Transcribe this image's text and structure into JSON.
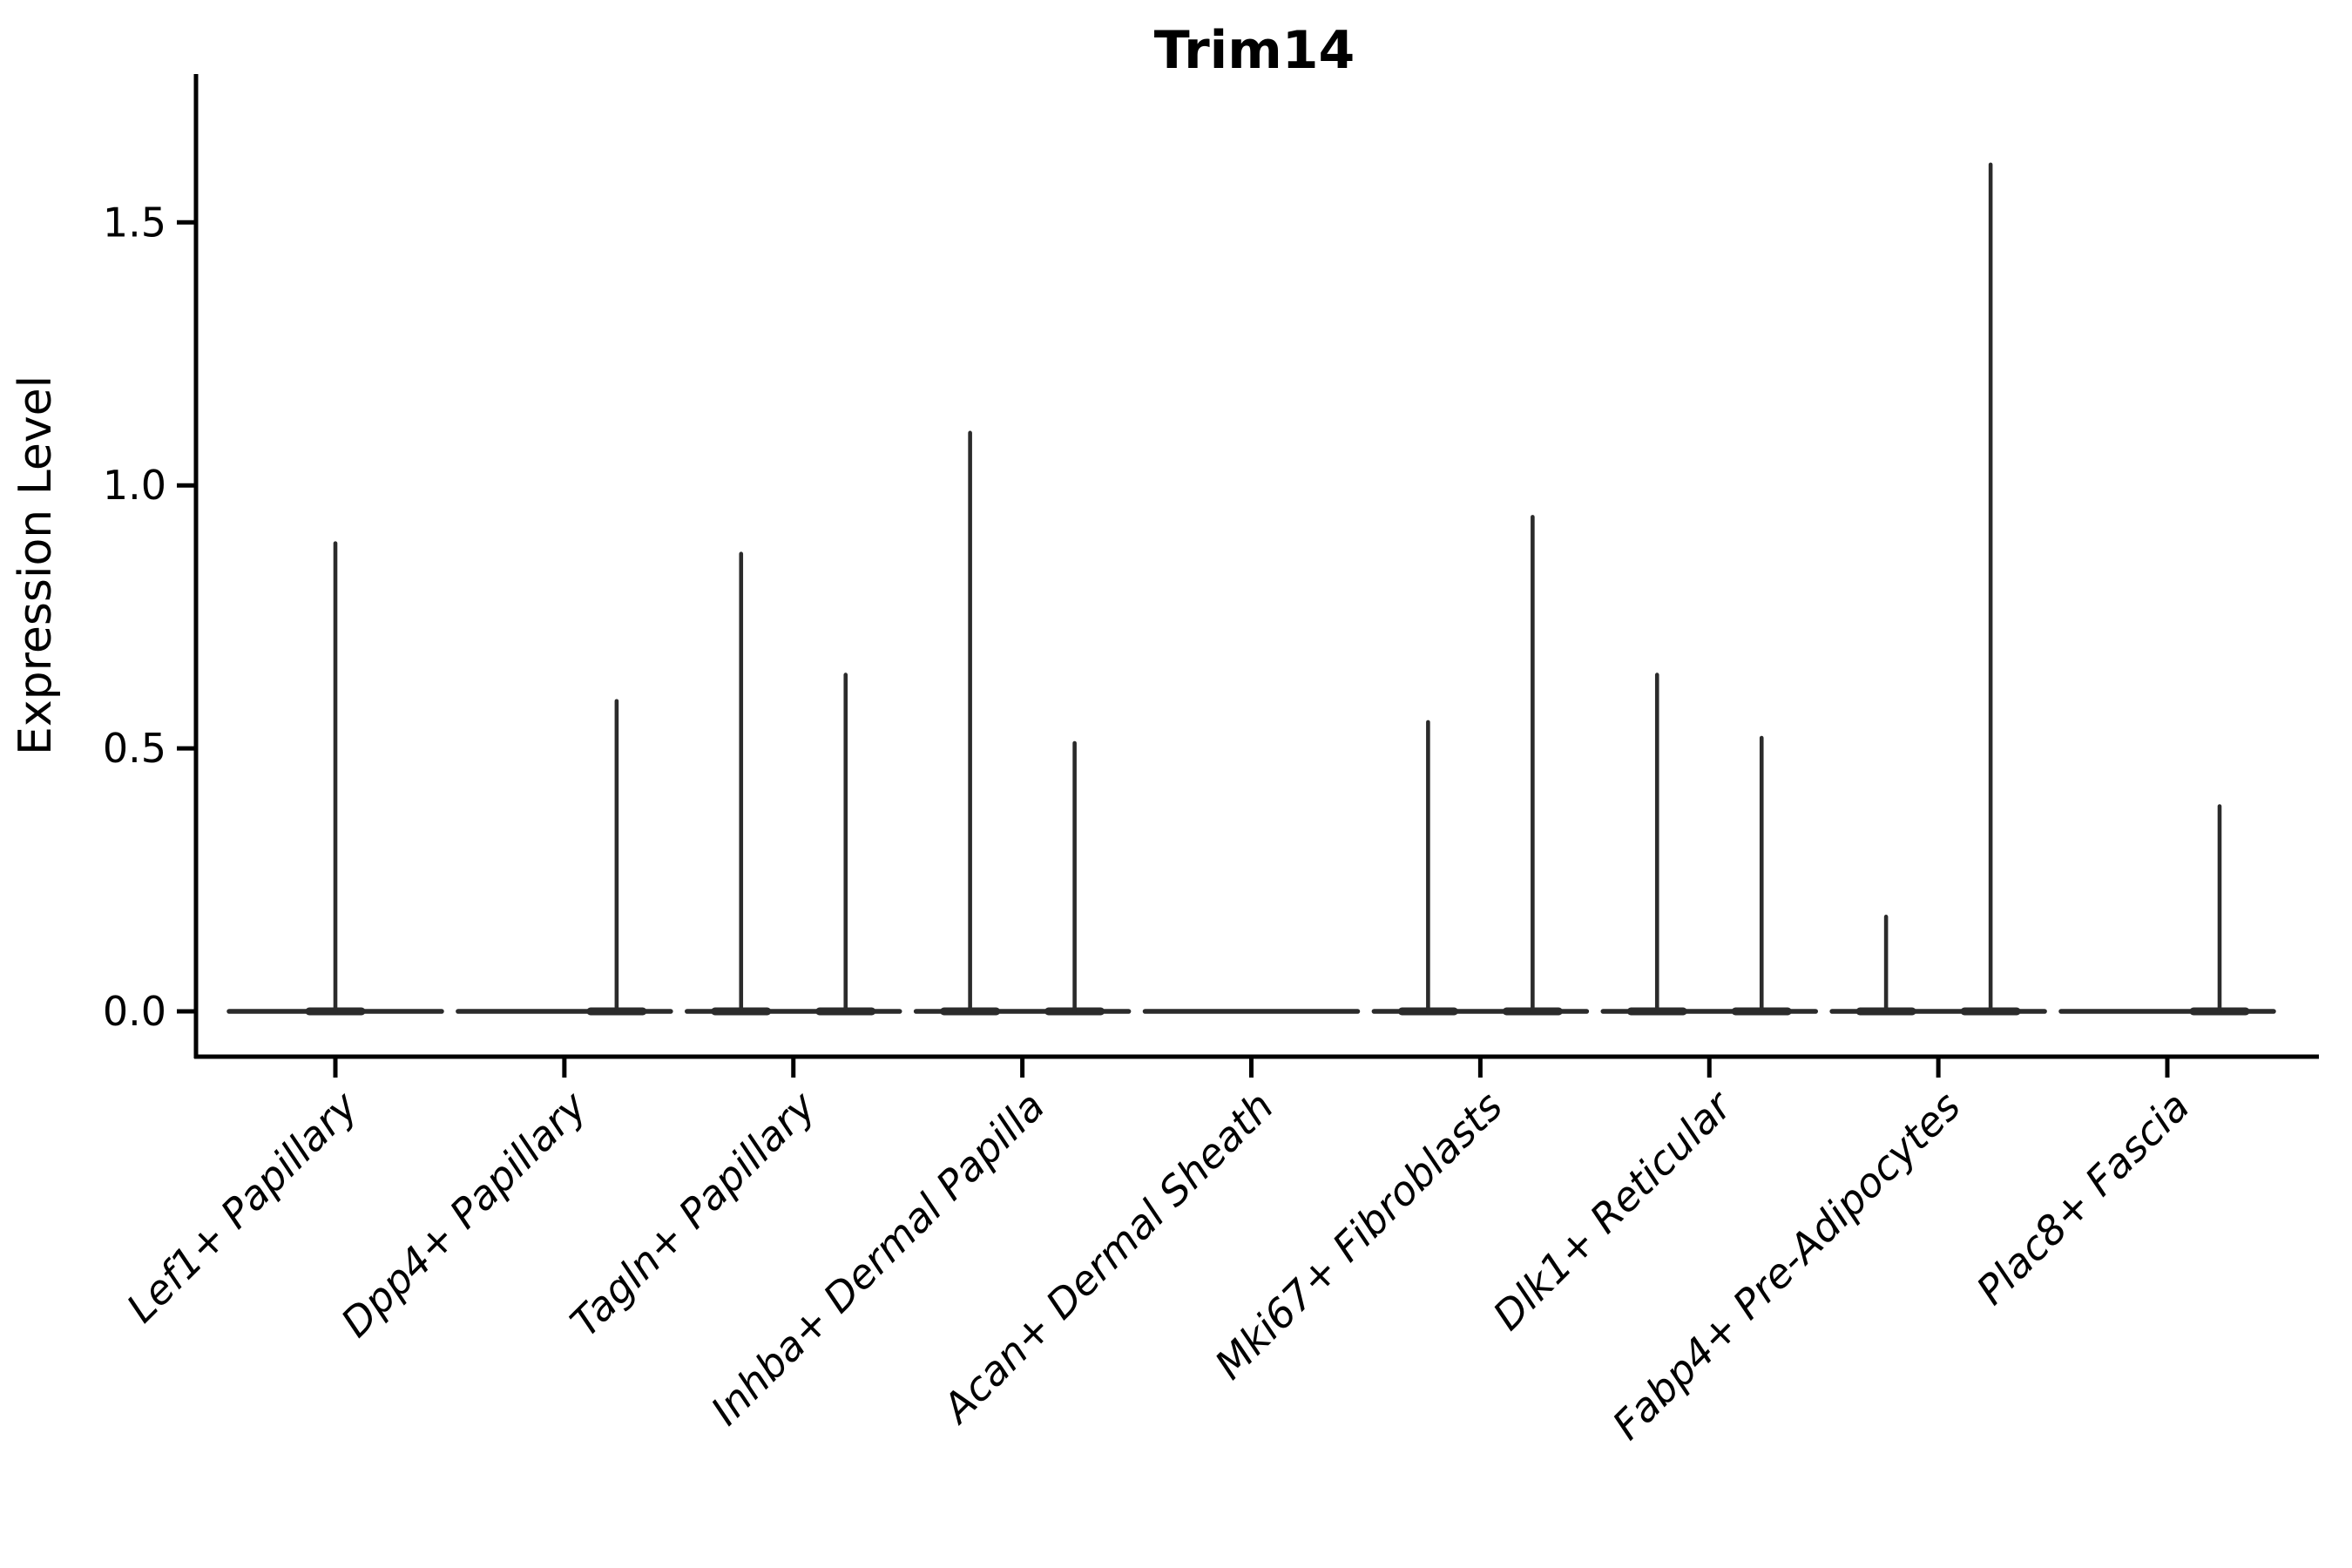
{
  "title": "Trim14",
  "y_axis": {
    "label": "Expression Level",
    "tick_labels": [
      "0.0",
      "0.5",
      "1.0",
      "1.5"
    ]
  },
  "x_axis": {
    "label": "",
    "tick_labels": [
      "Lef1+ Papillary",
      "Dpp4+ Papillary",
      "Tagln+ Papillary",
      "Inhba+ Dermal Papilla",
      "Acan+ Dermal Sheath",
      "Mki67+ Fibroblasts",
      "Dlk1+ Reticular",
      "Fabp4+ Pre-Adipocytes",
      "Plac8+ Fascia"
    ]
  },
  "chart_data": {
    "type": "violin",
    "title": "Trim14",
    "xlabel": "",
    "ylabel": "Expression Level",
    "ylim": [
      0,
      1.78
    ],
    "yticks": [
      0.0,
      0.5,
      1.0,
      1.5
    ],
    "ytick_labels": [
      "0.0",
      "0.5",
      "1.0",
      "1.5"
    ],
    "grid": false,
    "legend_position": "none",
    "baseline_value": 0.0,
    "description": "Violin plot of Trim14 expression; most cells at 0 so each violin collapses to a flat line at 0 with thin spikes reaching the maximum expression. Several categories contain two side-by-side (dodged) violins.",
    "categories": [
      "Lef1+ Papillary",
      "Dpp4+ Papillary",
      "Tagln+ Papillary",
      "Inhba+ Dermal Papilla",
      "Acan+ Dermal Sheath",
      "Mki67+ Fibroblasts",
      "Dlk1+ Reticular",
      "Fabp4+ Pre-Adipocytes",
      "Plac8+ Fascia"
    ],
    "violins": [
      {
        "category": "Lef1+ Papillary",
        "spikes": [
          {
            "offset": "center",
            "max": 0.89
          }
        ]
      },
      {
        "category": "Dpp4+ Papillary",
        "spikes": [
          {
            "offset": "right",
            "max": 0.59
          }
        ]
      },
      {
        "category": "Tagln+ Papillary",
        "spikes": [
          {
            "offset": "left",
            "max": 0.87
          },
          {
            "offset": "right",
            "max": 0.64
          }
        ]
      },
      {
        "category": "Inhba+ Dermal Papilla",
        "spikes": [
          {
            "offset": "left",
            "max": 1.1
          },
          {
            "offset": "right",
            "max": 0.51
          }
        ]
      },
      {
        "category": "Acan+ Dermal Sheath",
        "spikes": []
      },
      {
        "category": "Mki67+ Fibroblasts",
        "spikes": [
          {
            "offset": "left",
            "max": 0.55
          },
          {
            "offset": "right",
            "max": 0.94
          }
        ]
      },
      {
        "category": "Dlk1+ Reticular",
        "spikes": [
          {
            "offset": "left",
            "max": 0.64
          },
          {
            "offset": "right",
            "max": 0.52
          }
        ]
      },
      {
        "category": "Fabp4+ Pre-Adipocytes",
        "spikes": [
          {
            "offset": "left",
            "max": 0.18
          },
          {
            "offset": "right",
            "max": 1.61
          }
        ]
      },
      {
        "category": "Plac8+ Fascia",
        "spikes": [
          {
            "offset": "right",
            "max": 0.39
          }
        ]
      }
    ]
  },
  "style": {
    "background": "#ffffff",
    "axis_color": "#000000",
    "violin_color": "#2b2b2b",
    "text_color": "#000000"
  }
}
